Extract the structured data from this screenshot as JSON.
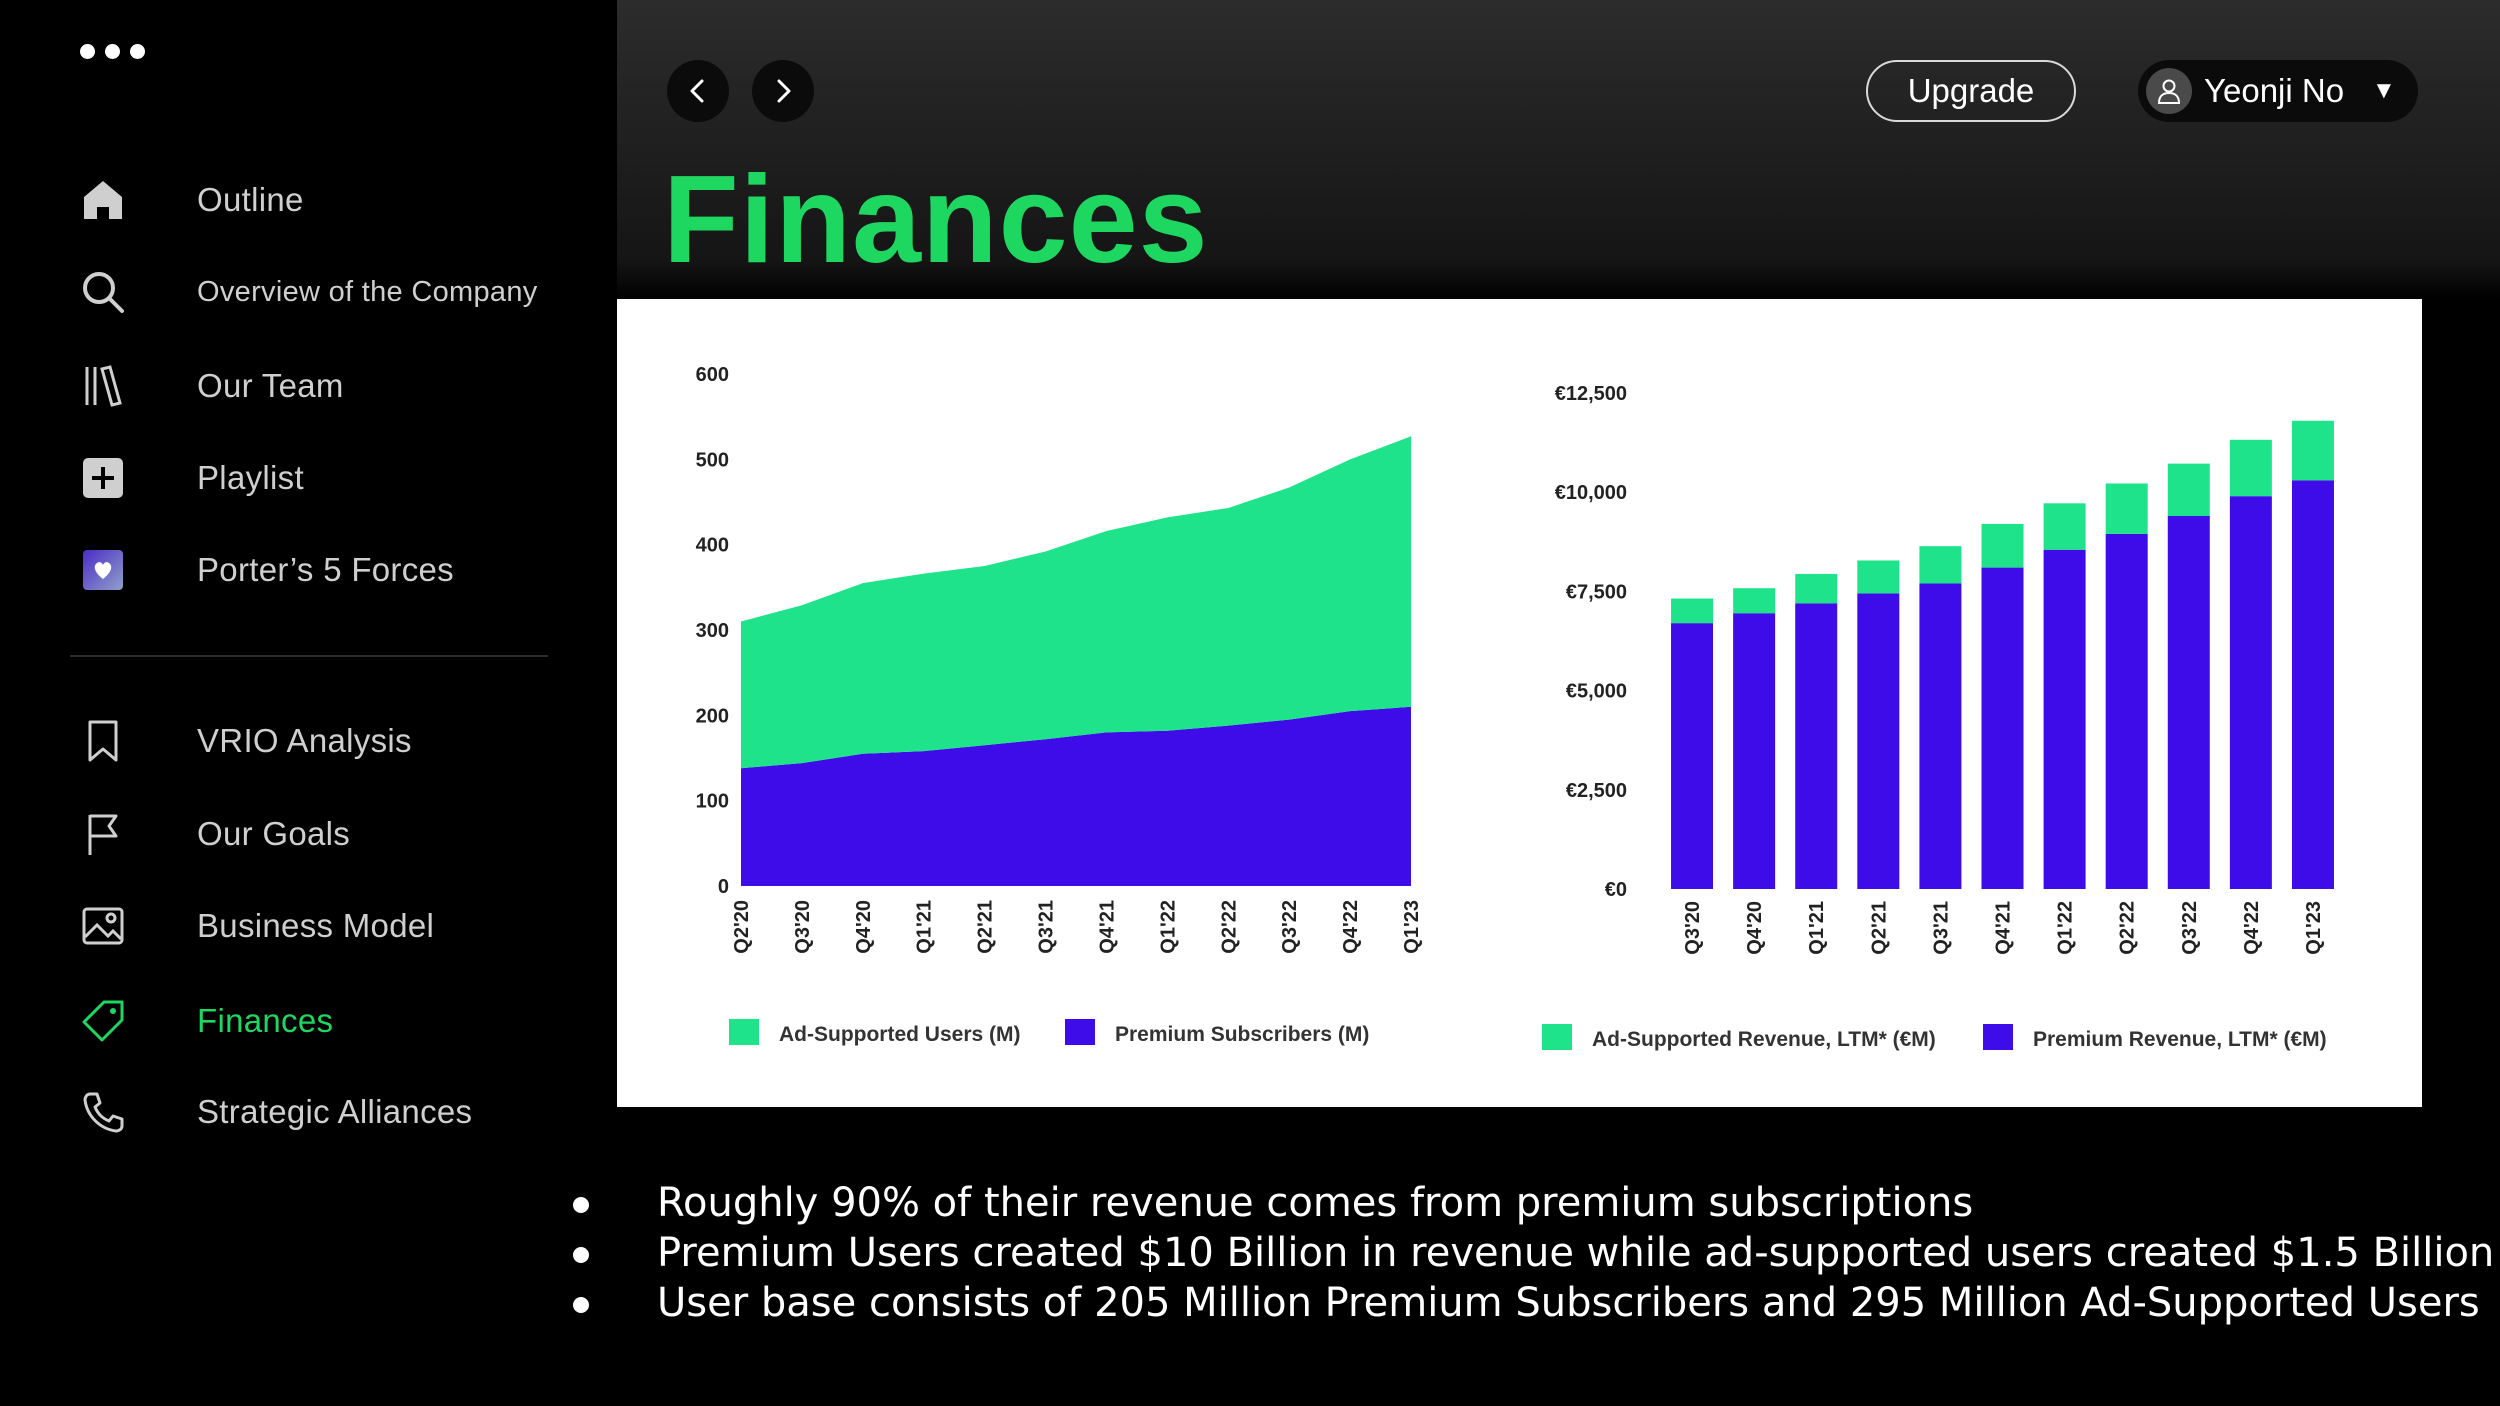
{
  "sidebar": {
    "items": [
      {
        "label": "Outline",
        "icon": "home-icon"
      },
      {
        "label": "Overview of the Company",
        "icon": "search-icon"
      },
      {
        "label": "Our  Team",
        "icon": "library-icon"
      },
      {
        "label": "Playlist",
        "icon": "plus-square-icon"
      },
      {
        "label": "Porter’s 5 Forces",
        "icon": "liked-songs-icon"
      },
      {
        "label": "VRIO Analysis",
        "icon": "bookmark-icon"
      },
      {
        "label": "Our Goals",
        "icon": "flag-icon"
      },
      {
        "label": "Business Model",
        "icon": "image-icon"
      },
      {
        "label": "Finances",
        "icon": "tag-icon",
        "active": true
      },
      {
        "label": "Strategic Alliances",
        "icon": "phone-icon"
      }
    ]
  },
  "header": {
    "upgrade_label": "Upgrade",
    "user_name": "Yeonji No",
    "title": "Finances"
  },
  "colors": {
    "accent": "#1ed760",
    "ad_supported": "#1ee38a",
    "premium": "#3d0ce8"
  },
  "chart_data": [
    {
      "type": "area",
      "stacked": true,
      "categories": [
        "Q2'20",
        "Q3'20",
        "Q4'20",
        "Q1'21",
        "Q2'21",
        "Q3'21",
        "Q4'21",
        "Q1'22",
        "Q2'22",
        "Q3'22",
        "Q4'22",
        "Q1'23"
      ],
      "ylim": [
        0,
        600
      ],
      "yticks": [
        "0",
        "100",
        "200",
        "300",
        "400",
        "500",
        "600"
      ],
      "series": [
        {
          "name": "Premium Subscribers (M)",
          "values": [
            138,
            144,
            155,
            158,
            165,
            172,
            180,
            182,
            188,
            195,
            205,
            210
          ]
        },
        {
          "name": "Ad-Supported Users (M)",
          "values": [
            172,
            185,
            200,
            208,
            210,
            220,
            236,
            250,
            255,
            272,
            295,
            317
          ]
        }
      ]
    },
    {
      "type": "bar",
      "stacked": true,
      "categories": [
        "Q3'20",
        "Q4'20",
        "Q1'21",
        "Q2'21",
        "Q3'21",
        "Q4'21",
        "Q1'22",
        "Q2'22",
        "Q3'22",
        "Q4'22",
        "Q1'23"
      ],
      "ylim": [
        0,
        12500
      ],
      "yticks": [
        "€0",
        "€2,500",
        "€5,000",
        "€7,500",
        "€10,000",
        "€12,500"
      ],
      "series": [
        {
          "name": "Premium Revenue, LTM* (€M)",
          "values": [
            6700,
            6950,
            7200,
            7450,
            7700,
            8100,
            8550,
            8950,
            9400,
            9900,
            10300
          ]
        },
        {
          "name": "Ad-Supported Revenue, LTM* (€M)",
          "values": [
            620,
            630,
            740,
            830,
            940,
            1100,
            1170,
            1270,
            1320,
            1420,
            1500
          ]
        }
      ]
    }
  ],
  "bullets": [
    "Roughly 90% of their revenue comes from premium subscriptions",
    "Premium Users created $10 Billion in revenue while ad-supported users created $1.5 Billion",
    "User base consists of 205 Million Premium Subscribers and 295 Million Ad-Supported Users"
  ]
}
